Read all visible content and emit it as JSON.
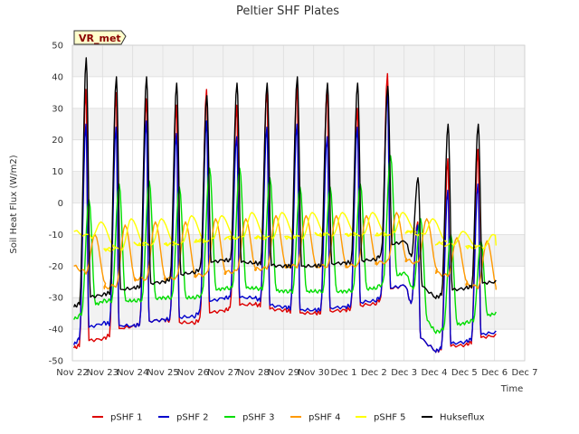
{
  "chart_data": {
    "type": "line",
    "title": "Peltier SHF Plates",
    "xlabel": "Time",
    "ylabel": "Soil Heat Flux (W/m2)",
    "badge": "VR_met",
    "ylim": [
      -50,
      50
    ],
    "xlim": [
      0,
      15
    ],
    "yticks": [
      -50,
      -40,
      -30,
      -20,
      -10,
      0,
      10,
      20,
      30,
      40,
      50
    ],
    "xticks": [
      {
        "v": 0,
        "label": "Nov 22"
      },
      {
        "v": 1,
        "label": "Nov 23"
      },
      {
        "v": 2,
        "label": "Nov 24"
      },
      {
        "v": 3,
        "label": "Nov 25"
      },
      {
        "v": 4,
        "label": "Nov 26"
      },
      {
        "v": 5,
        "label": "Nov 27"
      },
      {
        "v": 6,
        "label": "Nov 28"
      },
      {
        "v": 7,
        "label": "Nov 29"
      },
      {
        "v": 8,
        "label": "Nov 30"
      },
      {
        "v": 9,
        "label": "Dec 1"
      },
      {
        "v": 10,
        "label": "Dec 2"
      },
      {
        "v": 11,
        "label": "Dec 3"
      },
      {
        "v": 12,
        "label": "Dec 4"
      },
      {
        "v": 13,
        "label": "Dec 5"
      },
      {
        "v": 14,
        "label": "Dec 6"
      },
      {
        "v": 15,
        "label": "Dec 7"
      }
    ],
    "days": [
      0,
      1,
      2,
      3,
      4,
      5,
      6,
      7,
      8,
      9,
      10,
      11,
      12,
      13,
      14
    ],
    "series": [
      {
        "name": "pSHF 1",
        "color": "#dd0000",
        "peak_offset": 0.45,
        "rise": 0.22,
        "fall": 0.1,
        "peaks": [
          36,
          35,
          33,
          31,
          36,
          31,
          36,
          37,
          36,
          30,
          41,
          -6,
          14,
          17
        ],
        "troughs": [
          -46,
          -43,
          -39,
          -37,
          -38,
          -34,
          -32,
          -34,
          -35,
          -34,
          -32,
          -26,
          -47,
          -45,
          -42
        ]
      },
      {
        "name": "pSHF 2",
        "color": "#0000cc",
        "peak_offset": 0.45,
        "rise": 0.22,
        "fall": 0.1,
        "peaks": [
          25,
          24,
          26,
          22,
          26,
          21,
          24,
          25,
          21,
          24,
          35,
          -7,
          4,
          6
        ],
        "troughs": [
          -45,
          -38,
          -39,
          -37,
          -36,
          -30,
          -30,
          -33,
          -34,
          -33,
          -31,
          -26,
          -47,
          -44,
          -41
        ]
      },
      {
        "name": "pSHF 3",
        "color": "#00dd00",
        "peak_offset": 0.55,
        "rise": 0.25,
        "fall": 0.22,
        "peaks": [
          1,
          6,
          7,
          5,
          11,
          11,
          8,
          5,
          5,
          6,
          15,
          -5,
          -10,
          -12
        ],
        "troughs": [
          -37,
          -31,
          -31,
          -30,
          -30,
          -27,
          -27,
          -28,
          -28,
          -28,
          -27,
          -22,
          -41,
          -38,
          -35
        ]
      },
      {
        "name": "pSHF 4",
        "color": "#ff9900",
        "peak_offset": 0.75,
        "rise": 0.3,
        "fall": 0.35,
        "peaks": [
          -10,
          -7,
          -6,
          -6,
          -5,
          -5,
          -4,
          -4,
          -4,
          -4,
          -3,
          -5,
          -11,
          -12
        ],
        "troughs": [
          -20,
          -27,
          -24,
          -24,
          -23,
          -22,
          -21,
          -20,
          -20,
          -20,
          -19,
          -18,
          -22,
          -26,
          -28
        ]
      },
      {
        "name": "pSHF 5",
        "color": "#ffff00",
        "peak_offset": 0.95,
        "rise": 0.3,
        "fall": 0.45,
        "peaks": [
          -6,
          -5,
          -5,
          -4,
          -4,
          -3,
          -3,
          -3,
          -3,
          -3,
          -3,
          -5,
          -9,
          -10
        ],
        "troughs": [
          -9,
          -15,
          -13,
          -13,
          -12,
          -11,
          -11,
          -11,
          -10,
          -10,
          -10,
          -9,
          -13,
          -14,
          -14
        ]
      },
      {
        "name": "Hukseflux",
        "color": "#000000",
        "peak_offset": 0.46,
        "rise": 0.22,
        "fall": 0.14,
        "peaks": [
          46,
          40,
          40,
          38,
          34,
          38,
          38,
          40,
          38,
          38,
          37,
          8,
          25,
          25
        ],
        "troughs": [
          -33,
          -29,
          -27,
          -25,
          -22,
          -18,
          -19,
          -20,
          -20,
          -19,
          -18,
          -12,
          -30,
          -27,
          -25
        ]
      }
    ]
  }
}
